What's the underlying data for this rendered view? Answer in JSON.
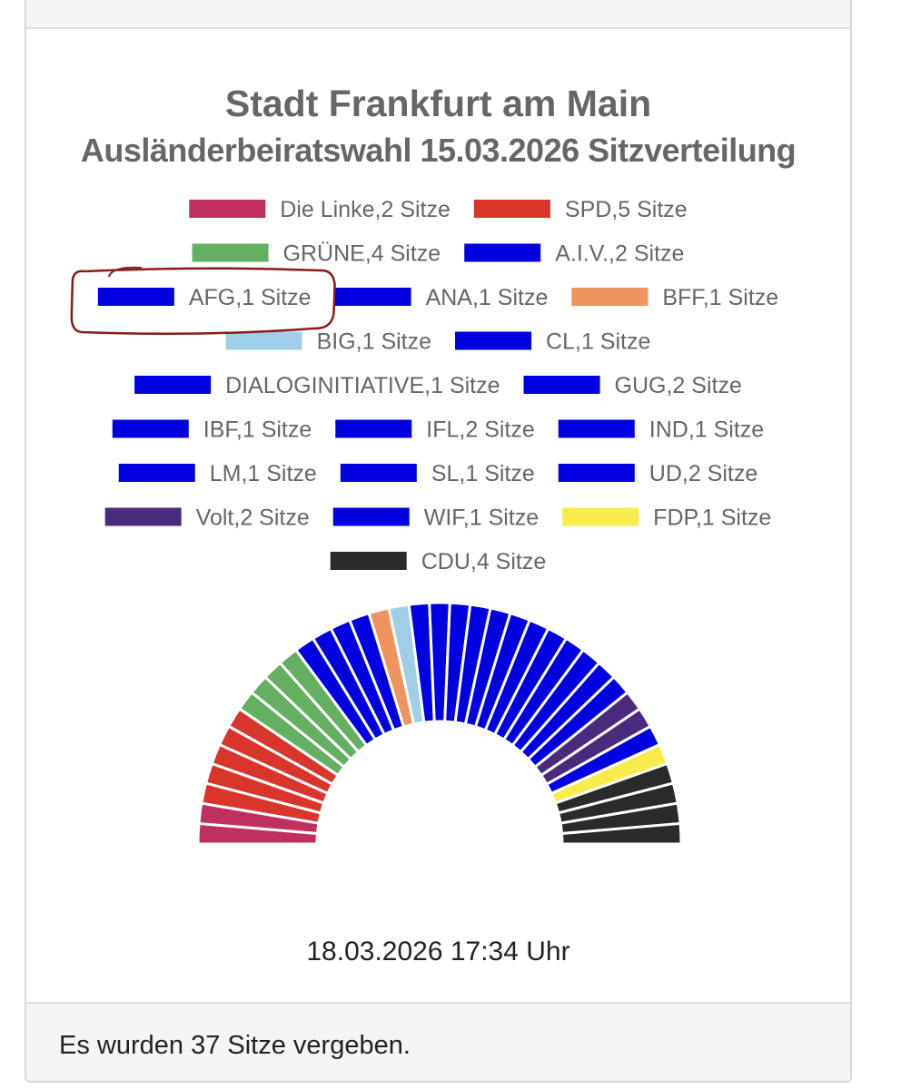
{
  "header": {
    "fragment": "g"
  },
  "chart_data": {
    "type": "parliament",
    "title": "Stadt Frankfurt am Main",
    "subtitle": "Ausländerbeiratswahl 15.03.2026 Sitzverteilung",
    "legend_suffix": ",",
    "unit": "Sitze",
    "total": 37,
    "series": [
      {
        "name": "Die Linke",
        "value": 2,
        "color": "#c0305f"
      },
      {
        "name": "SPD",
        "value": 5,
        "color": "#d9352b"
      },
      {
        "name": "GRÜNE",
        "value": 4,
        "color": "#63b061"
      },
      {
        "name": "A.I.V.",
        "value": 2,
        "color": "#0000e0"
      },
      {
        "name": "AFG",
        "value": 1,
        "color": "#0000e0"
      },
      {
        "name": "ANA",
        "value": 1,
        "color": "#0000e0"
      },
      {
        "name": "BFF",
        "value": 1,
        "color": "#f0945f"
      },
      {
        "name": "BIG",
        "value": 1,
        "color": "#9fcfe8"
      },
      {
        "name": "CL",
        "value": 1,
        "color": "#0000e0"
      },
      {
        "name": "DIALOGINITIATIVE",
        "value": 1,
        "color": "#0000e0"
      },
      {
        "name": "GUG",
        "value": 2,
        "color": "#0000e0"
      },
      {
        "name": "IBF",
        "value": 1,
        "color": "#0000e0"
      },
      {
        "name": "IFL",
        "value": 2,
        "color": "#0000e0"
      },
      {
        "name": "IND",
        "value": 1,
        "color": "#0000e0"
      },
      {
        "name": "LM",
        "value": 1,
        "color": "#0000e0"
      },
      {
        "name": "SL",
        "value": 1,
        "color": "#0000e0"
      },
      {
        "name": "UD",
        "value": 2,
        "color": "#0000e0"
      },
      {
        "name": "Volt",
        "value": 2,
        "color": "#4a2a7c"
      },
      {
        "name": "WIF",
        "value": 1,
        "color": "#0000e0"
      },
      {
        "name": "FDP",
        "value": 1,
        "color": "#f7ec4b"
      },
      {
        "name": "CDU",
        "value": 4,
        "color": "#2a2a2a"
      }
    ],
    "legend_rows": [
      [
        "Die Linke",
        "SPD"
      ],
      [
        "GRÜNE",
        "A.I.V."
      ],
      [
        "AFG",
        "ANA",
        "BFF"
      ],
      [
        "BIG",
        "CL"
      ],
      [
        "DIALOGINITIATIVE",
        "GUG"
      ],
      [
        "IBF",
        "IFL",
        "IND"
      ],
      [
        "LM",
        "SL",
        "UD"
      ],
      [
        "Volt",
        "WIF",
        "FDP"
      ],
      [
        "CDU"
      ]
    ],
    "highlighted": "AFG",
    "highlight_color": "#8b1a1a",
    "legend_text_color": "#666666"
  },
  "timestamp": "18.03.2026 17:34 Uhr",
  "footer": {
    "text": "Es wurden 37 Sitze vergeben."
  }
}
